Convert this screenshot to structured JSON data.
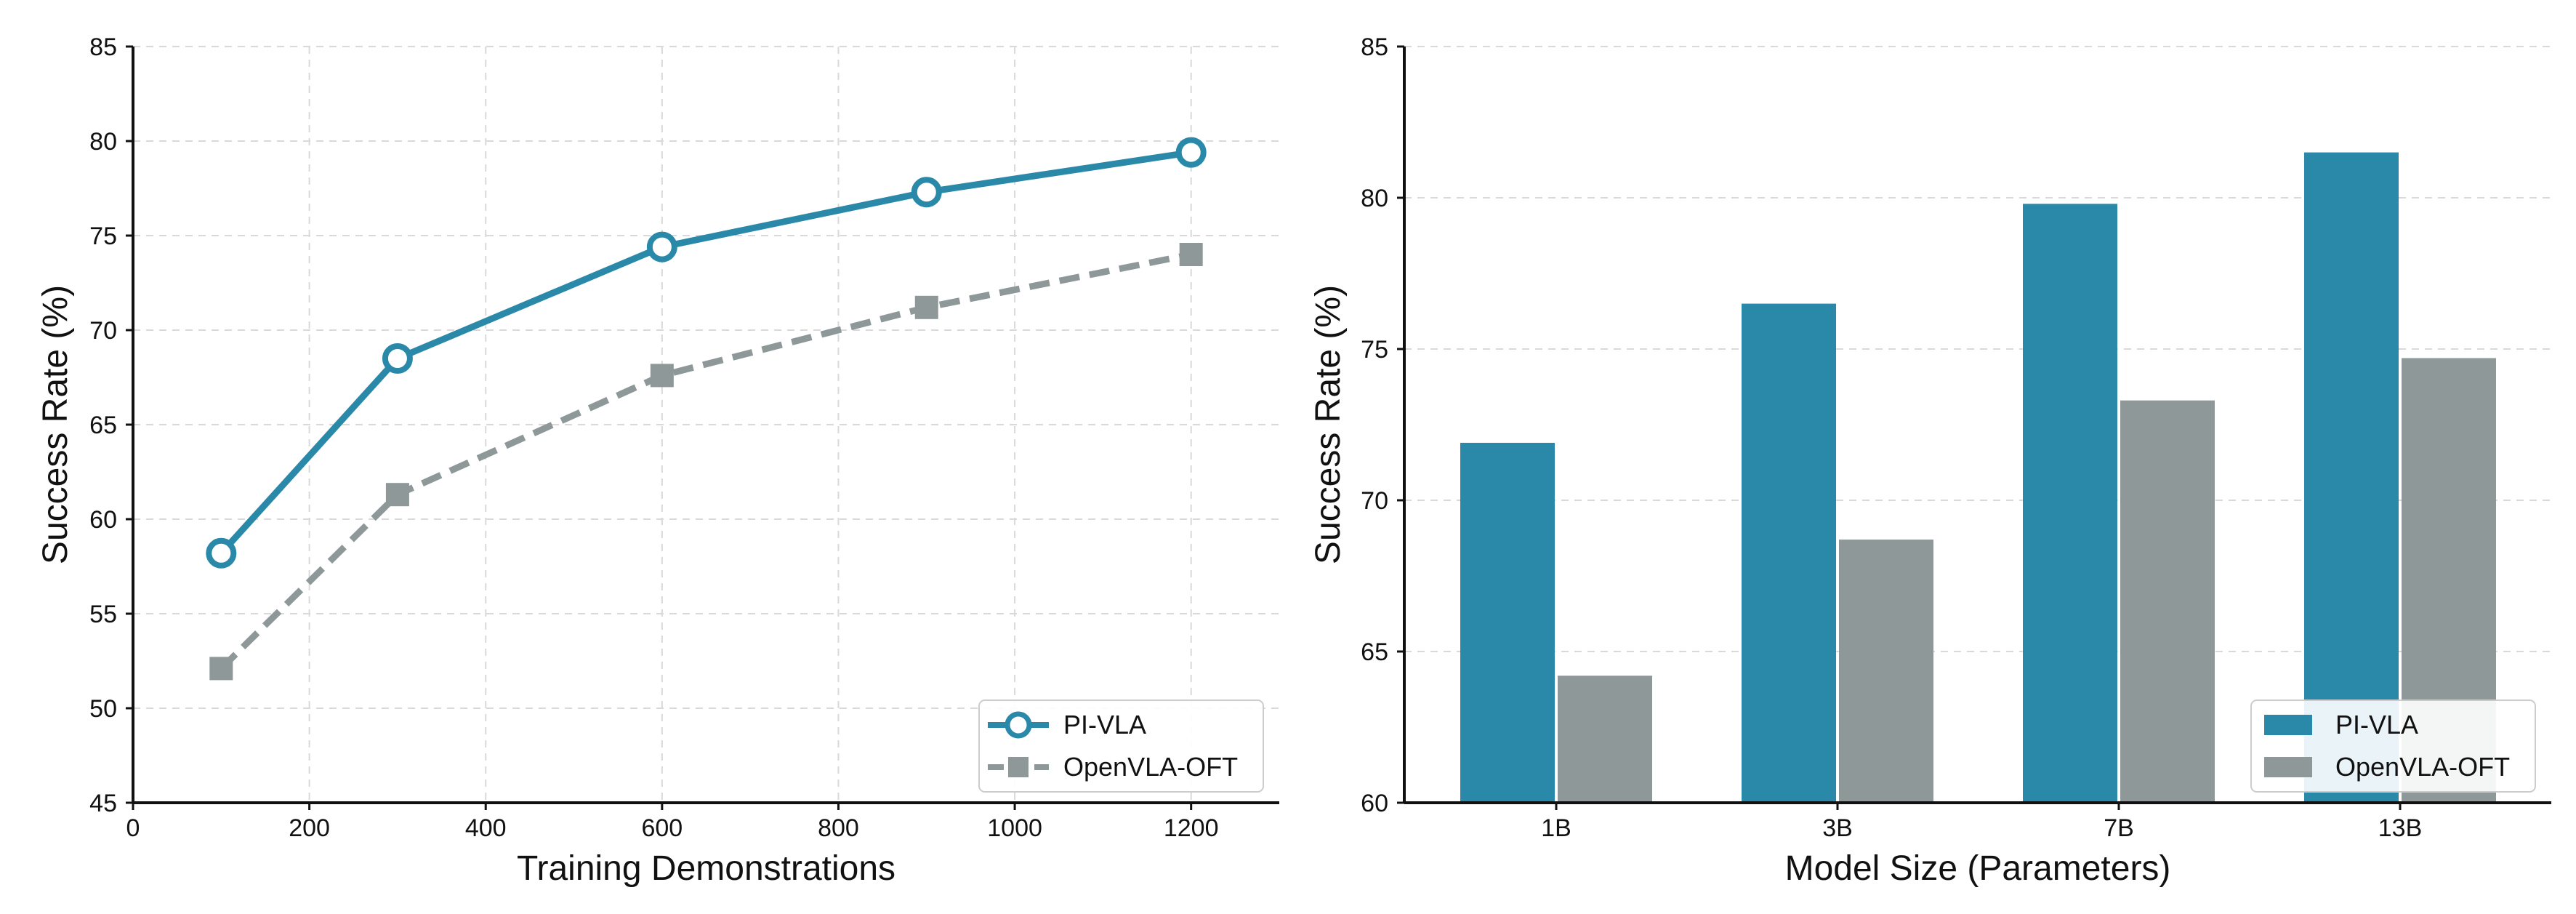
{
  "colors": {
    "pivla": "#2a88a9",
    "openvla": "#8f9899",
    "grid": "#d9d9d9",
    "axis": "#111111"
  },
  "chart_data": [
    {
      "type": "line",
      "xlabel": "Training Demonstrations",
      "ylabel": "Success Rate (%)",
      "xlim": [
        0,
        1300
      ],
      "ylim": [
        45,
        85
      ],
      "xticks": [
        "0",
        "200",
        "400",
        "600",
        "800",
        "1000",
        "1200"
      ],
      "yticks": [
        "45",
        "50",
        "55",
        "60",
        "65",
        "70",
        "75",
        "80",
        "85"
      ],
      "grid": true,
      "legend_position": "lower-right",
      "x": [
        100,
        300,
        600,
        900,
        1200
      ],
      "series": [
        {
          "name": "PI-VLA",
          "values": [
            58.2,
            68.5,
            74.4,
            77.3,
            79.4
          ],
          "style": "solid",
          "marker": "open-circle",
          "color": "#2a88a9"
        },
        {
          "name": "OpenVLA-OFT",
          "values": [
            52.1,
            61.3,
            67.6,
            71.2,
            74.0
          ],
          "style": "dashed",
          "marker": "square",
          "color": "#8f9899"
        }
      ]
    },
    {
      "type": "bar",
      "xlabel": "Model Size (Parameters)",
      "ylabel": "Success Rate (%)",
      "ylim": [
        60,
        85
      ],
      "yticks": [
        "60",
        "65",
        "70",
        "75",
        "80",
        "85"
      ],
      "grid": true,
      "legend_position": "lower-right",
      "categories": [
        "1B",
        "3B",
        "7B",
        "13B"
      ],
      "series": [
        {
          "name": "PI-VLA",
          "values": [
            71.9,
            76.5,
            79.8,
            81.5
          ],
          "color": "#2a88a9"
        },
        {
          "name": "OpenVLA-OFT",
          "values": [
            64.2,
            68.7,
            73.3,
            74.7
          ],
          "color": "#8f9899"
        }
      ]
    }
  ]
}
